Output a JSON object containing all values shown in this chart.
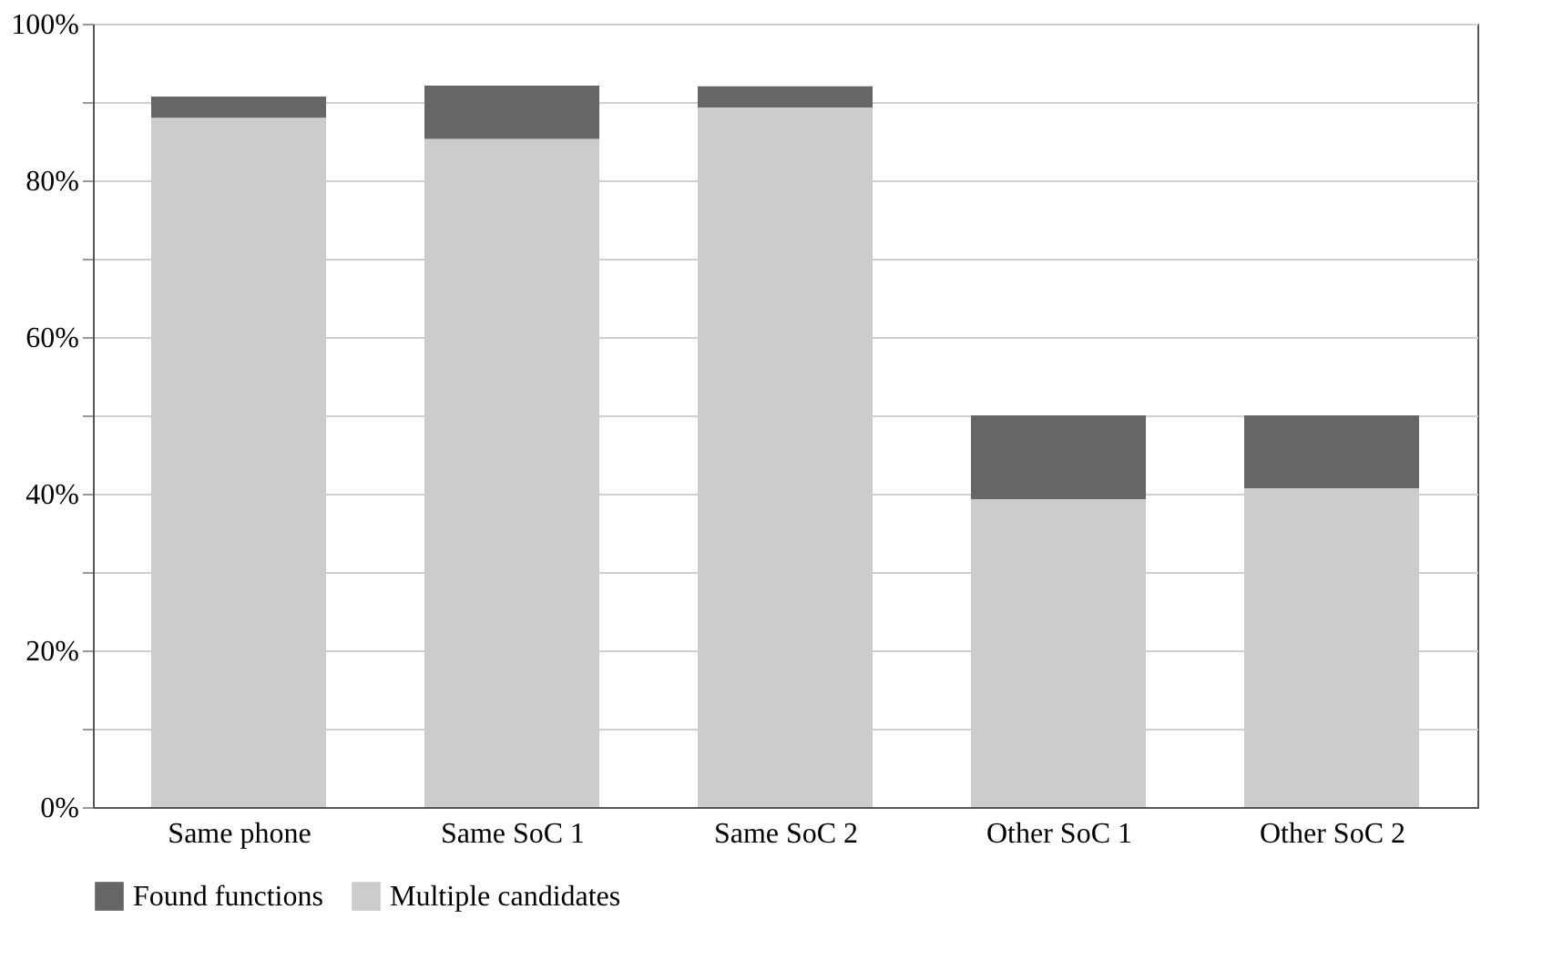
{
  "chart_data": {
    "type": "bar",
    "stacked": true,
    "categories": [
      "Same phone",
      "Same SoC 1",
      "Same SoC 2",
      "Other SoC 1",
      "Other SoC 2"
    ],
    "series": [
      {
        "name": "Multiple candidates",
        "color": "#cccccc",
        "values": [
          88,
          85.3,
          89.3,
          39.3,
          40.7
        ]
      },
      {
        "name": "Found functions",
        "color": "#666666",
        "values": [
          2.7,
          6.8,
          2.7,
          10.7,
          9.3
        ]
      }
    ],
    "ylim": [
      0,
      100
    ],
    "yticks": [
      {
        "value": 0,
        "label": "0%"
      },
      {
        "value": 10,
        "label": null
      },
      {
        "value": 20,
        "label": "20%"
      },
      {
        "value": 30,
        "label": null
      },
      {
        "value": 40,
        "label": "40%"
      },
      {
        "value": 50,
        "label": null
      },
      {
        "value": 60,
        "label": "60%"
      },
      {
        "value": 70,
        "label": null
      },
      {
        "value": 80,
        "label": "80%"
      },
      {
        "value": 90,
        "label": null
      },
      {
        "value": 100,
        "label": "100%"
      }
    ],
    "grid": "y",
    "legend": "bottom"
  }
}
